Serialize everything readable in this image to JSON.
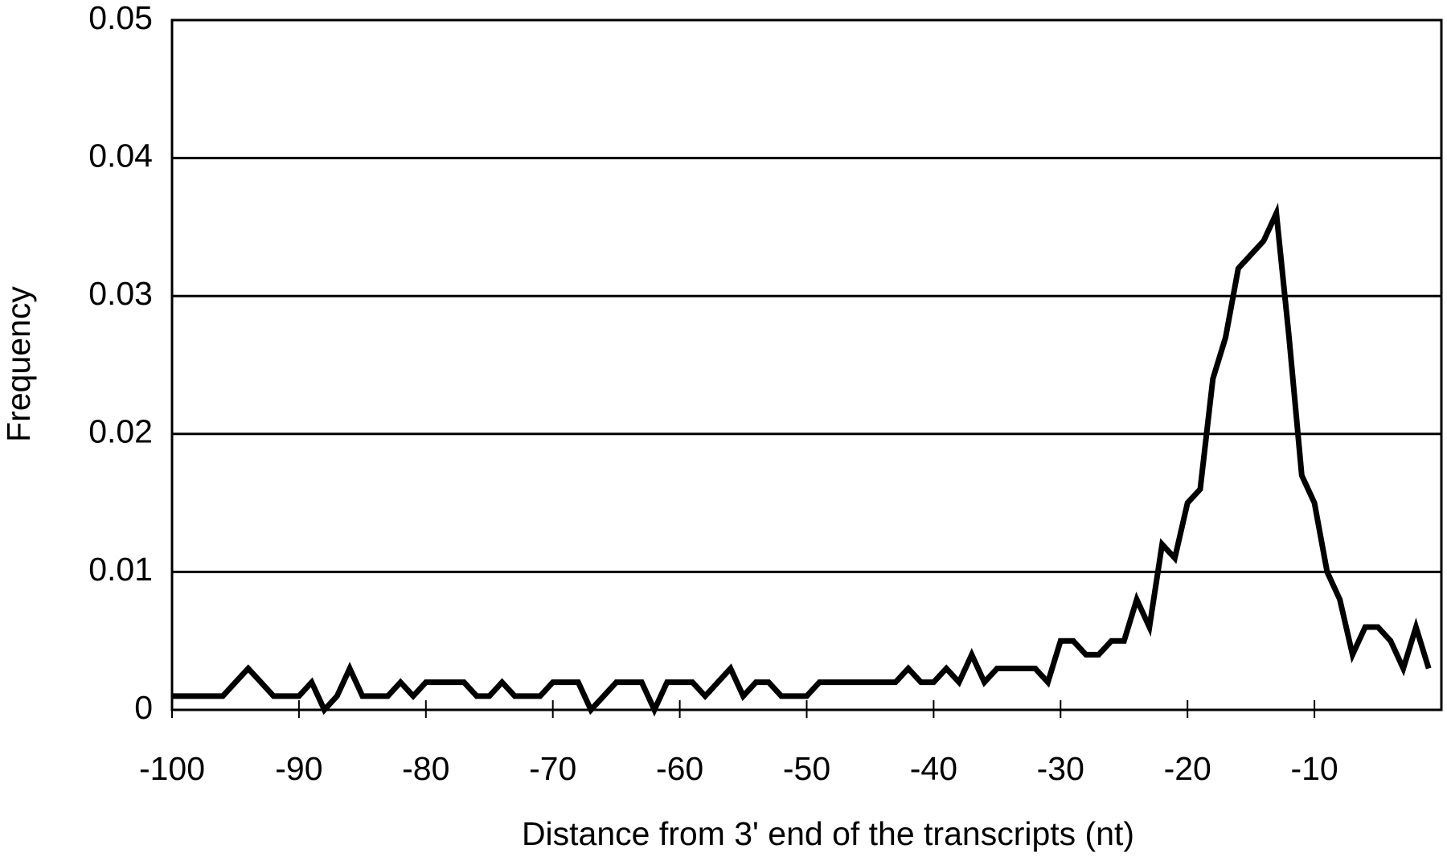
{
  "chart_data": {
    "type": "line",
    "x_label": "Distance from 3' end of the transcripts (nt)",
    "y_label": "Frequency",
    "x": [
      -100,
      -99,
      -98,
      -97,
      -96,
      -95,
      -94,
      -93,
      -92,
      -91,
      -90,
      -89,
      -88,
      -87,
      -86,
      -85,
      -84,
      -83,
      -82,
      -81,
      -80,
      -79,
      -78,
      -77,
      -76,
      -75,
      -74,
      -73,
      -72,
      -71,
      -70,
      -69,
      -68,
      -67,
      -66,
      -65,
      -64,
      -63,
      -62,
      -61,
      -60,
      -59,
      -58,
      -57,
      -56,
      -55,
      -54,
      -53,
      -52,
      -51,
      -50,
      -49,
      -48,
      -47,
      -46,
      -45,
      -44,
      -43,
      -42,
      -41,
      -40,
      -39,
      -38,
      -37,
      -36,
      -35,
      -34,
      -33,
      -32,
      -31,
      -30,
      -29,
      -28,
      -27,
      -26,
      -25,
      -24,
      -23,
      -22,
      -21,
      -20,
      -19,
      -18,
      -17,
      -16,
      -15,
      -14,
      -13,
      -12,
      -11,
      -10,
      -9,
      -8,
      -7,
      -6,
      -5,
      -4,
      -3,
      -2,
      -1
    ],
    "series": [
      {
        "color": "#000000",
        "values": [
          0.001,
          0.001,
          0.001,
          0.001,
          0.001,
          0.002,
          0.003,
          0.002,
          0.001,
          0.001,
          0.001,
          0.002,
          0,
          0.001,
          0.003,
          0.001,
          0.001,
          0.001,
          0.002,
          0.001,
          0.002,
          0.002,
          0.002,
          0.002,
          0.001,
          0.001,
          0.002,
          0.001,
          0.001,
          0.001,
          0.002,
          0.002,
          0.002,
          0,
          0.001,
          0.002,
          0.002,
          0.002,
          0,
          0.002,
          0.002,
          0.002,
          0.001,
          0.002,
          0.003,
          0.001,
          0.002,
          0.002,
          0.001,
          0.001,
          0.001,
          0.002,
          0.002,
          0.002,
          0.002,
          0.002,
          0.002,
          0.002,
          0.003,
          0.002,
          0.002,
          0.003,
          0.002,
          0.004,
          0.002,
          0.003,
          0.003,
          0.003,
          0.003,
          0.002,
          0.005,
          0.005,
          0.004,
          0.004,
          0.005,
          0.005,
          0.008,
          0.006,
          0.012,
          0.011,
          0.015,
          0.016,
          0.024,
          0.027,
          0.032,
          0.033,
          0.034,
          0.036,
          0.027,
          0.017,
          0.015,
          0.01,
          0.008,
          0.004,
          0.006,
          0.006,
          0.005,
          0.003,
          0.006,
          0.003
        ]
      }
    ],
    "xlim": [
      -100,
      0
    ],
    "xticks": [
      -100,
      -90,
      -80,
      -70,
      -60,
      -50,
      -40,
      -30,
      -20,
      -10
    ],
    "ylim": [
      0,
      0.05
    ],
    "yticks": [
      0,
      0.01,
      0.02,
      0.03,
      0.04,
      0.05
    ],
    "grid": true
  }
}
